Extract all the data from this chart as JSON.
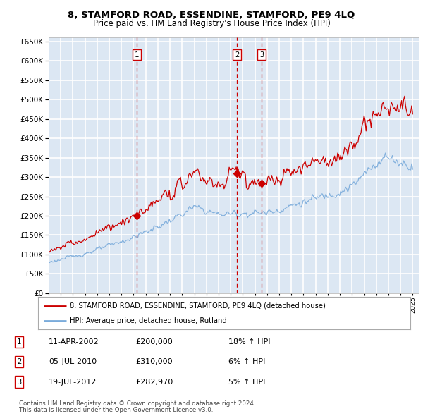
{
  "title": "8, STAMFORD ROAD, ESSENDINE, STAMFORD, PE9 4LQ",
  "subtitle": "Price paid vs. HM Land Registry's House Price Index (HPI)",
  "legend_line1": "8, STAMFORD ROAD, ESSENDINE, STAMFORD, PE9 4LQ (detached house)",
  "legend_line2": "HPI: Average price, detached house, Rutland",
  "transactions": [
    {
      "num": 1,
      "date": "11-APR-2002",
      "price": 200000,
      "hpi_change": "18% ↑ HPI",
      "date_decimal": 2002.27
    },
    {
      "num": 2,
      "date": "05-JUL-2010",
      "price": 310000,
      "hpi_change": "6% ↑ HPI",
      "date_decimal": 2010.51
    },
    {
      "num": 3,
      "date": "19-JUL-2012",
      "price": 282970,
      "hpi_change": "5% ↑ HPI",
      "date_decimal": 2012.55
    }
  ],
  "footer1": "Contains HM Land Registry data © Crown copyright and database right 2024.",
  "footer2": "This data is licensed under the Open Government Licence v3.0.",
  "plot_bg_color": "#dce7f3",
  "grid_color": "#ffffff",
  "red_line_color": "#cc0000",
  "blue_line_color": "#7aabdb",
  "ylim_min": 0,
  "ylim_max": 660000,
  "xmin": 1995.0,
  "xmax": 2025.5
}
